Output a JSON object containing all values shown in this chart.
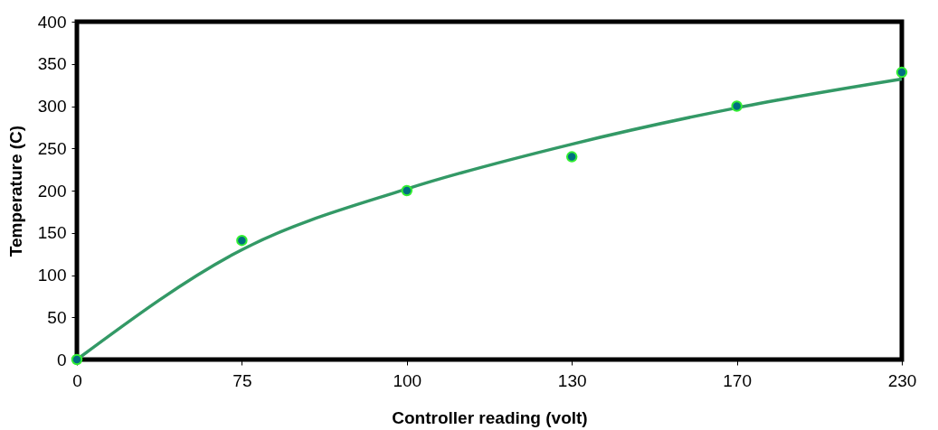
{
  "chart_data": {
    "type": "scatter",
    "xlabel": "Controller reading (volt)",
    "ylabel": "Temperature (C)",
    "categories": [
      "0",
      "75",
      "100",
      "130",
      "170",
      "230"
    ],
    "series": [
      {
        "type": "line",
        "marker": "none",
        "color": "#339966",
        "values": [
          0,
          130,
          202,
          255,
          298,
          332
        ]
      },
      {
        "marker": "circle",
        "color": "#006f80",
        "values": [
          0,
          141,
          200,
          240,
          300,
          340
        ]
      }
    ],
    "ylim": [
      0,
      400
    ],
    "yticks": [
      0,
      50,
      100,
      150,
      200,
      250,
      300,
      350,
      400
    ],
    "grid": false,
    "line_style": "solid"
  }
}
